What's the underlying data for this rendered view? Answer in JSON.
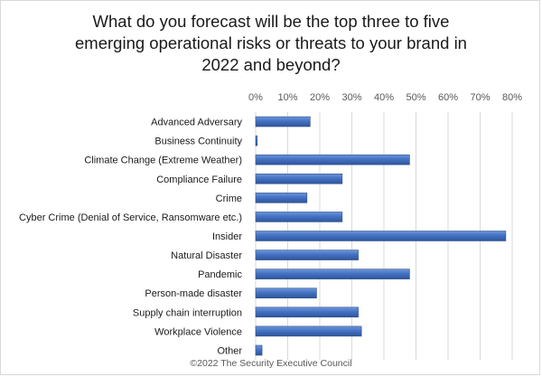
{
  "chart_data": {
    "type": "bar",
    "orientation": "horizontal",
    "title_lines": [
      "What do you forecast will be the top three to five",
      "emerging operational risks or threats to your brand in",
      "2022 and beyond?"
    ],
    "categories": [
      "Advanced Adversary",
      "Business Continuity",
      "Climate Change (Extreme Weather)",
      "Compliance Failure",
      "Crime",
      "Cyber Crime (Denial of Service, Ransomware etc.)",
      "Insider",
      "Natural Disaster",
      "Pandemic",
      "Person-made disaster",
      "Supply chain interruption",
      "Workplace Violence",
      "Other"
    ],
    "values": [
      17,
      0.5,
      48,
      27,
      16,
      27,
      78,
      32,
      48,
      19,
      32,
      33,
      2
    ],
    "value_unit": "%",
    "xlim": [
      0,
      80
    ],
    "xticks": [
      "0%",
      "10%",
      "20%",
      "30%",
      "40%",
      "50%",
      "60%",
      "70%",
      "80%"
    ],
    "x_axis_position": "top",
    "grid": true,
    "bar_color": "#4472c4",
    "footer": "©2022 The Security Executive Council"
  }
}
